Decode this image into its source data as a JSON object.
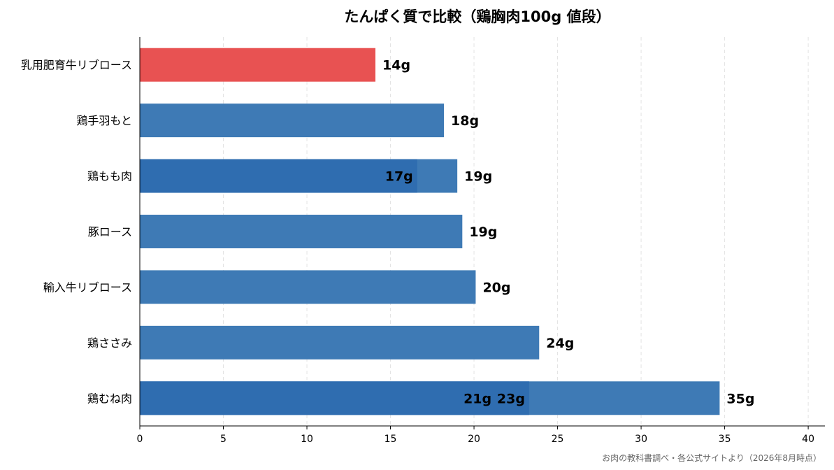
{
  "chart_data": {
    "type": "bar",
    "orientation": "horizontal",
    "title": "たんぱく質で比較（鶏胸肉100g 値段）",
    "source": "お肉の教科書調べ・各公式サイトより（2026年8月時点）",
    "categories": [
      "乳用肥育牛リブロース",
      "鶏手羽もと",
      "鶏もも肉",
      "豚ロース",
      "輸入牛リブロース",
      "鶏ささみ",
      "鶏むね肉"
    ],
    "values": [
      14.1,
      18.2,
      19.0,
      19.3,
      20.1,
      23.9,
      34.7
    ],
    "value_labels": [
      "14g",
      "18g",
      "19g",
      "19g",
      "20g",
      "24g",
      "35g"
    ],
    "inner_marks": [
      {
        "category": "鶏もも肉",
        "labels": [
          {
            "text": "17g",
            "value": 16.6
          }
        ]
      },
      {
        "category": "鶏むね肉",
        "labels": [
          {
            "text": "21g",
            "value": 21.3
          },
          {
            "text": "23g",
            "value": 23.3
          }
        ]
      }
    ],
    "xlim": [
      0,
      41
    ],
    "xticks": [
      0,
      5,
      10,
      15,
      20,
      25,
      30,
      35,
      40
    ],
    "grid": "vertical-dashed",
    "colors": {
      "highlight": "#e85252",
      "bar": "#3e7ab5",
      "bar_dark": "#2f6db0",
      "text": "#000000",
      "source": "#666666"
    },
    "highlight_index": 0
  }
}
